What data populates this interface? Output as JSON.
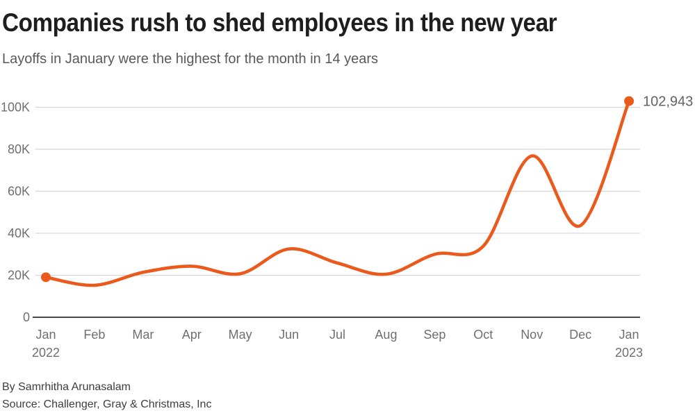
{
  "header": {
    "title": "Companies rush to shed employees in the new year",
    "subtitle": "Layoffs in January were the highest for the month in 14 years"
  },
  "footer": {
    "byline": "By Samrhitha Arunasalam",
    "source": "Source: Challenger, Gray &amp; Christmas, Inc"
  },
  "colors": {
    "line": "#eb5a1d",
    "point": "#eb5a1d",
    "grid": "#d6d6d6",
    "zero_axis": "#484848",
    "tick_text": "#6f6f6f",
    "end_label_text": "#636363",
    "title_text": "#1e1e1e",
    "subtitle_text": "#58595b",
    "footer_text": "#3d3d3d"
  },
  "chart_data": {
    "type": "line",
    "title": "Companies rush to shed employees in the new year",
    "subtitle": "Layoffs in January were the highest for the month in 14 years",
    "categories": [
      {
        "month": "Jan",
        "year": "2022"
      },
      {
        "month": "Feb"
      },
      {
        "month": "Mar"
      },
      {
        "month": "Apr"
      },
      {
        "month": "May"
      },
      {
        "month": "Jun"
      },
      {
        "month": "Jul"
      },
      {
        "month": "Aug"
      },
      {
        "month": "Sep"
      },
      {
        "month": "Oct"
      },
      {
        "month": "Nov"
      },
      {
        "month": "Dec"
      },
      {
        "month": "Jan",
        "year": "2023"
      }
    ],
    "values": [
      19064,
      15245,
      21387,
      24286,
      20712,
      32517,
      25810,
      20485,
      29989,
      33843,
      76835,
      43651,
      102943
    ],
    "yticks": [
      {
        "value": 0,
        "label": "0"
      },
      {
        "value": 20000,
        "label": "20K"
      },
      {
        "value": 40000,
        "label": "40K"
      },
      {
        "value": 60000,
        "label": "60K"
      },
      {
        "value": 80000,
        "label": "80K"
      },
      {
        "value": 100000,
        "label": "100K"
      }
    ],
    "ylim": [
      0,
      105000
    ],
    "xlabel": "",
    "ylabel": "",
    "grid": true,
    "legend": false,
    "end_label": "102,943",
    "marked_points": [
      "first",
      "last"
    ]
  }
}
